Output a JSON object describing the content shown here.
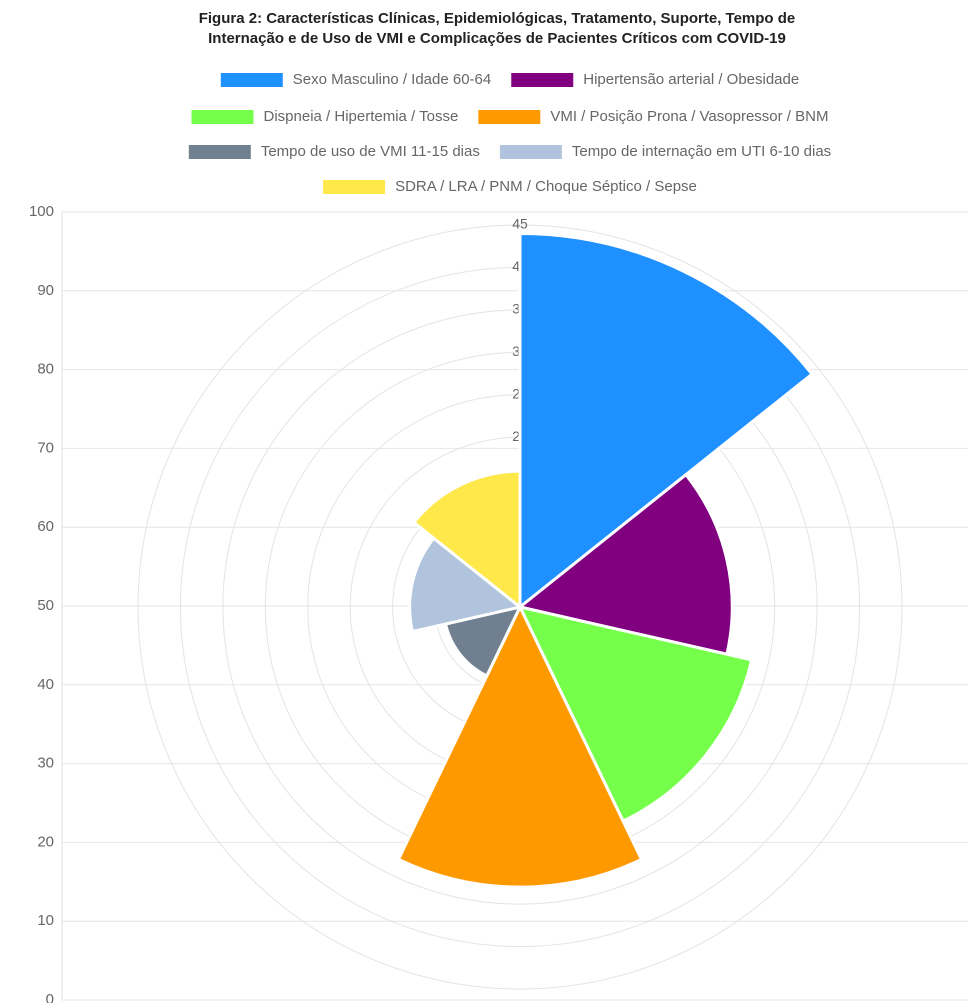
{
  "chart_data": {
    "type": "polarArea",
    "title": [
      "Figura 2: Características Clínicas, Epidemiológicas, Tratamento, Suporte, Tempo de",
      "Internação e de Uso de VMI e Complicações de Pacientes Críticos com COVID-19"
    ],
    "series": [
      {
        "name": "Sexo Masculino / Idade 60-64",
        "color": "#1e90ff",
        "values": [
          44
        ]
      },
      {
        "name": "Hipertensão arterial / Obesidade",
        "color": "#800080",
        "values": [
          25
        ]
      },
      {
        "name": "Dispneia / Hipertemia / Tosse",
        "color": "#76ff4a",
        "values": [
          28
        ]
      },
      {
        "name": "VMI / Posição Prona / Vasopressor / BNM",
        "color": "#ff9900",
        "values": [
          33
        ]
      },
      {
        "name": "Tempo de uso de VMI 11-15 dias",
        "color": "#708090",
        "values": [
          9
        ]
      },
      {
        "name": "Tempo de internação em UTI 6-10 dias",
        "color": "#b0c4de",
        "values": [
          13
        ]
      },
      {
        "name": "SDRA / LRA / PNM / Choque Séptico / Sepse",
        "color": "#ffe84a",
        "values": [
          16
        ]
      }
    ],
    "rlim": [
      0,
      45
    ],
    "rticks": [
      5,
      10,
      15,
      20,
      25,
      30,
      35,
      40,
      45
    ],
    "ylim": [
      0,
      100
    ],
    "yticks": [
      0,
      10,
      20,
      30,
      40,
      50,
      60,
      70,
      80,
      90,
      100
    ],
    "grid": true
  }
}
